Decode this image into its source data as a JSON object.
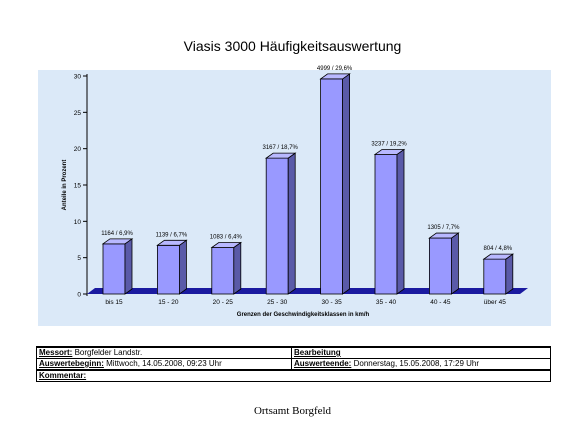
{
  "chart_data": {
    "type": "bar",
    "title": "Viasis 3000 Häufigkeitsauswertung",
    "xlabel": "Grenzen der Geschwindigkeitsklassen in km/h",
    "ylabel": "Anteile in Prozent",
    "categories": [
      "bis 15",
      "15 - 20",
      "20 - 25",
      "25 - 30",
      "30 - 35",
      "35 - 40",
      "40 - 45",
      "über 45"
    ],
    "values": [
      6.9,
      6.7,
      6.4,
      18.7,
      29.6,
      19.2,
      7.7,
      4.8
    ],
    "data_labels": [
      "1164 / 6,9%",
      "1139 / 6,7%",
      "1083 / 6,4%",
      "3167 / 18,7%",
      "4999 / 29,6%",
      "3237 / 19,2%",
      "1305 / 7,7%",
      "804 / 4,8%"
    ],
    "yticks": [
      0,
      5,
      10,
      15,
      20,
      25,
      30
    ],
    "ylim": [
      0,
      30
    ],
    "grid": false,
    "legend": "none",
    "colors": {
      "plot_bg": "#dbe9f8",
      "bar_front": "#9999ff",
      "bar_side": "#5a5aa8",
      "bar_top": "#b8b8ff",
      "floor": "#1a1aa0"
    }
  },
  "info": {
    "messort_label": "Messort:",
    "messort_value": "Borgfelder Landstr.",
    "bearbeitung_label": "Bearbeitung",
    "beginn_label": "Auswertebeginn:",
    "beginn_value": "Mittwoch, 14.05.2008, 09:23 Uhr",
    "ende_label": "Auswerteende:",
    "ende_value": "Donnerstag, 15.05.2008, 17:29 Uhr",
    "kommentar_label": "Kommentar:"
  },
  "footer": "Ortsamt Borgfeld"
}
